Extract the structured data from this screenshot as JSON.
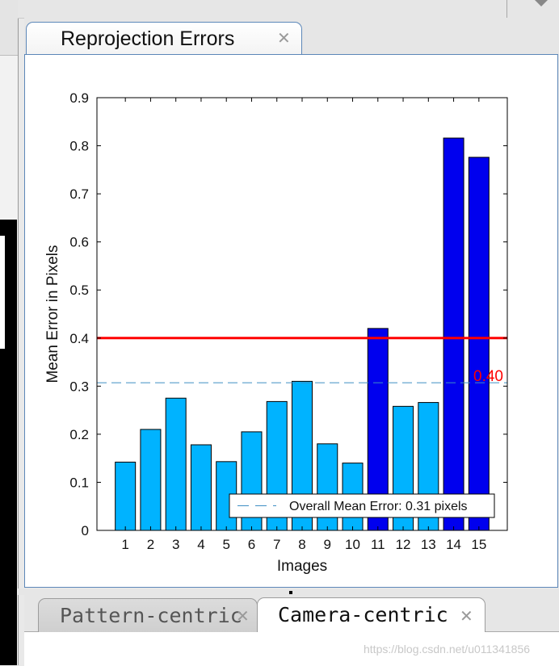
{
  "tabs": {
    "top": {
      "label": "Reprojection Errors"
    },
    "bottom": [
      {
        "label": "Pattern-centric"
      },
      {
        "label": "Camera-centric"
      }
    ]
  },
  "watermark": "https://blog.csdn.net/u011341856",
  "chart_data": {
    "type": "bar",
    "categories": [
      "1",
      "2",
      "3",
      "4",
      "5",
      "6",
      "7",
      "8",
      "9",
      "10",
      "11",
      "12",
      "13",
      "14",
      "15"
    ],
    "values": [
      0.142,
      0.21,
      0.275,
      0.178,
      0.143,
      0.205,
      0.268,
      0.31,
      0.18,
      0.14,
      0.42,
      0.258,
      0.266,
      0.816,
      0.776
    ],
    "selected": [
      false,
      false,
      false,
      false,
      false,
      false,
      false,
      false,
      false,
      false,
      true,
      false,
      false,
      true,
      true
    ],
    "colors": {
      "normal": "#00b3ff",
      "selected": "#0000ee",
      "threshold": "#ff0000",
      "mean": "#3f8fc4"
    },
    "xlabel": "Images",
    "ylabel": "Mean Error in Pixels",
    "ylim": [
      0,
      0.9
    ],
    "yticks": [
      "0",
      "0.1",
      "0.2",
      "0.3",
      "0.4",
      "0.5",
      "0.6",
      "0.7",
      "0.8",
      "0.9"
    ],
    "threshold": {
      "value": 0.4,
      "label": "0.40"
    },
    "overall_mean": {
      "value": 0.307,
      "label": "Overall Mean Error: 0.31 pixels"
    },
    "legend_position": "bottom-right",
    "grid": false
  }
}
